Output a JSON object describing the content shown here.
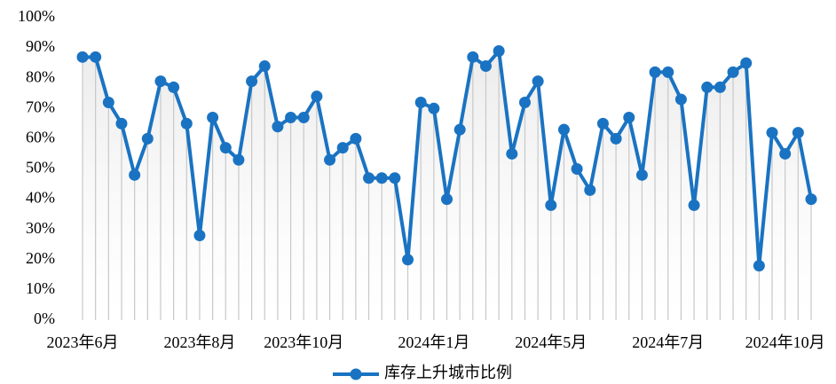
{
  "chart_data": {
    "type": "line",
    "categories": [
      "2023年6月",
      null,
      null,
      null,
      null,
      null,
      null,
      null,
      null,
      "2023年8月",
      null,
      null,
      null,
      null,
      null,
      null,
      null,
      "2023年10月",
      null,
      null,
      null,
      null,
      null,
      null,
      null,
      null,
      null,
      "2024年1月",
      null,
      null,
      null,
      null,
      null,
      null,
      null,
      null,
      "2024年5月",
      null,
      null,
      null,
      null,
      null,
      null,
      null,
      null,
      "2024年7月",
      null,
      null,
      null,
      null,
      null,
      null,
      null,
      null,
      "2024年10月",
      null,
      null
    ],
    "series": [
      {
        "name": "库存上升城市比例",
        "color": "#1a73c2",
        "values": [
          87,
          87,
          72,
          65,
          48,
          60,
          79,
          77,
          65,
          28,
          67,
          57,
          53,
          79,
          84,
          64,
          67,
          67,
          74,
          53,
          57,
          60,
          47,
          47,
          47,
          20,
          72,
          70,
          40,
          63,
          87,
          84,
          89,
          55,
          72,
          79,
          38,
          63,
          50,
          43,
          65,
          60,
          67,
          48,
          82,
          82,
          73,
          38,
          77,
          77,
          82,
          85,
          18,
          62,
          55,
          62,
          40
        ]
      }
    ],
    "ylim": [
      0,
      100
    ],
    "yticks": [
      {
        "value": 0,
        "label": "0%"
      },
      {
        "value": 10,
        "label": "10%"
      },
      {
        "value": 20,
        "label": "20%"
      },
      {
        "value": 30,
        "label": "30%"
      },
      {
        "value": 40,
        "label": "40%"
      },
      {
        "value": 50,
        "label": "50%"
      },
      {
        "value": 60,
        "label": "60%"
      },
      {
        "value": 70,
        "label": "70%"
      },
      {
        "value": 80,
        "label": "80%"
      },
      {
        "value": 90,
        "label": "90%"
      },
      {
        "value": 100,
        "label": "100%"
      }
    ],
    "legend": "bottom"
  }
}
